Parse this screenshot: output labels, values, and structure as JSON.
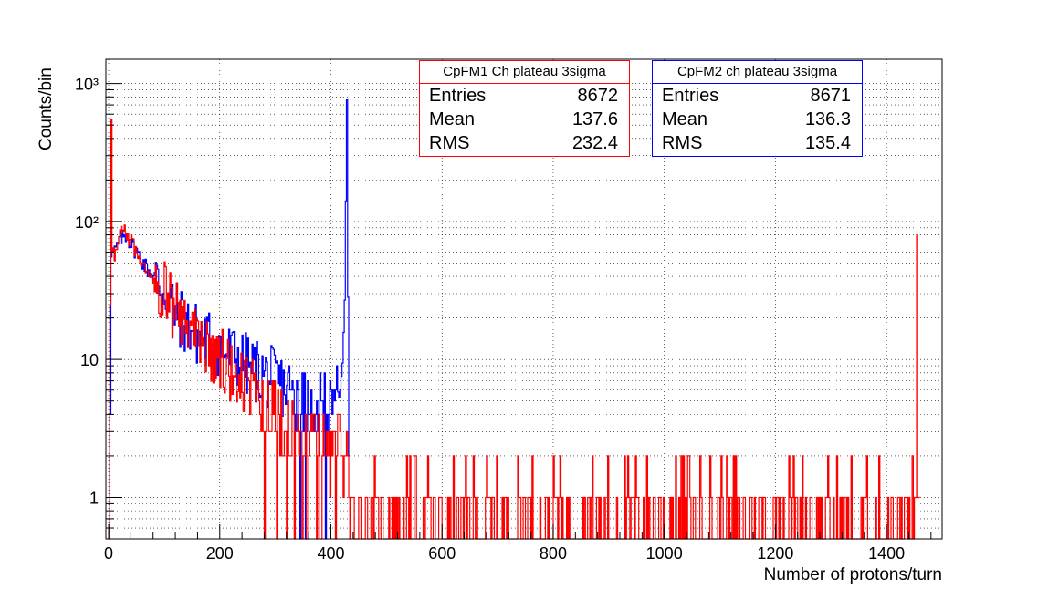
{
  "chart_data": {
    "type": "histogram",
    "xlabel": "Number of protons/turn",
    "ylabel": "Counts/bin",
    "xlim": [
      -5,
      1500
    ],
    "ylim": [
      0.5,
      1500
    ],
    "yscale": "log",
    "grid": true,
    "x_ticks": [
      0,
      200,
      400,
      600,
      800,
      1000,
      1200,
      1400
    ],
    "x_tick_labels": [
      "0",
      "200",
      "400",
      "600",
      "800",
      "1000",
      "1200",
      "1400"
    ],
    "y_tick_labels": [
      "1",
      "10",
      "10²",
      "10³"
    ],
    "y_ticks": [
      1,
      10,
      100,
      1000
    ],
    "series": [
      {
        "name": "CpFM2 ch plateau 3sigma",
        "color": "#0000ff",
        "bin_width": 2,
        "envelope": [
          [
            0,
            0.6
          ],
          [
            4,
            55
          ],
          [
            10,
            60
          ],
          [
            20,
            75
          ],
          [
            30,
            80
          ],
          [
            50,
            60
          ],
          [
            70,
            45
          ],
          [
            100,
            32
          ],
          [
            120,
            22
          ],
          [
            150,
            16
          ],
          [
            200,
            12
          ],
          [
            250,
            9
          ],
          [
            300,
            7
          ],
          [
            350,
            5
          ],
          [
            400,
            5
          ],
          [
            412,
            6
          ],
          [
            418,
            8
          ],
          [
            422,
            14
          ],
          [
            425,
            40
          ],
          [
            427,
            400
          ],
          [
            428,
            800
          ],
          [
            430,
            30
          ],
          [
            432,
            1
          ]
        ],
        "tail_start": 432
      },
      {
        "name": "CpFM1 Ch plateau 3sigma",
        "color": "#ff0000",
        "bin_width": 2,
        "envelope": [
          [
            0,
            0.6
          ],
          [
            4,
            540
          ],
          [
            6,
            60
          ],
          [
            10,
            55
          ],
          [
            20,
            80
          ],
          [
            30,
            85
          ],
          [
            50,
            60
          ],
          [
            70,
            45
          ],
          [
            100,
            32
          ],
          [
            120,
            22
          ],
          [
            150,
            16
          ],
          [
            200,
            10
          ],
          [
            250,
            6
          ],
          [
            300,
            4
          ],
          [
            350,
            3
          ],
          [
            400,
            2.5
          ],
          [
            500,
            1.8
          ],
          [
            700,
            1.4
          ],
          [
            1000,
            1.3
          ],
          [
            1400,
            1.1
          ],
          [
            1455,
            1
          ]
        ],
        "spikes": [
          [
            1453,
            80
          ]
        ],
        "tail_start": 432
      }
    ],
    "stats": [
      {
        "title": "CpFM1 Ch plateau 3sigma",
        "color": "#ff0000",
        "entries": "8672",
        "mean": "137.6",
        "rms": "232.4"
      },
      {
        "title": "CpFM2 ch plateau 3sigma",
        "color": "#0000ff",
        "entries": "8671",
        "mean": "136.3",
        "rms": "135.4"
      }
    ]
  },
  "labels": {
    "entries": "Entries",
    "mean": "Mean",
    "rms": "RMS"
  }
}
